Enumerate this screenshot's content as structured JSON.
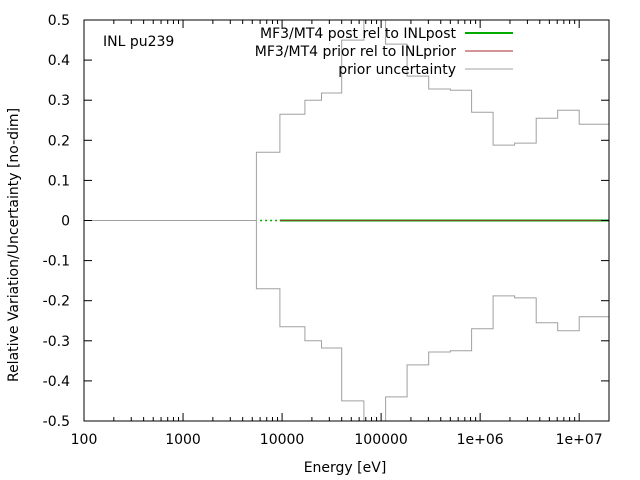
{
  "chart_data": {
    "type": "line",
    "annotation": "INL pu239",
    "xlabel": "Energy [eV]",
    "ylabel": "Relative Variation/Uncertainty [no-dim]",
    "xscale": "log",
    "xlim": [
      100,
      20000000
    ],
    "ylim": [
      -0.5,
      0.5
    ],
    "grid": false,
    "legend_position": "top-right",
    "x_ticks": [
      {
        "value": 100,
        "label": "100"
      },
      {
        "value": 1000,
        "label": "1000"
      },
      {
        "value": 10000,
        "label": "10000"
      },
      {
        "value": 100000,
        "label": "100000"
      },
      {
        "value": 1000000,
        "label": "1e+06"
      },
      {
        "value": 10000000,
        "label": "1e+07"
      }
    ],
    "y_ticks": [
      {
        "value": 0.5,
        "label": "0.5"
      },
      {
        "value": 0.4,
        "label": "0.4"
      },
      {
        "value": 0.3,
        "label": "0.3"
      },
      {
        "value": 0.2,
        "label": "0.2"
      },
      {
        "value": 0.1,
        "label": "0.1"
      },
      {
        "value": 0,
        "label": "0"
      },
      {
        "value": -0.1,
        "label": "-0.1"
      },
      {
        "value": -0.2,
        "label": "-0.2"
      },
      {
        "value": -0.3,
        "label": "-0.3"
      },
      {
        "value": -0.4,
        "label": "-0.4"
      },
      {
        "value": -0.5,
        "label": "-0.5"
      }
    ],
    "series": [
      {
        "name": "MF3/MT4 post rel to INLpost",
        "color": "#00aa00",
        "style": "solid-thick",
        "x": [
          6000,
          20000000
        ],
        "y": [
          0,
          0
        ]
      },
      {
        "name": "MF3/MT4 prior rel to INLprior",
        "color": "#a52a2a",
        "style": "solid",
        "x": [
          6000,
          20000000
        ],
        "y": [
          0,
          0
        ]
      },
      {
        "name": "prior uncertainty",
        "color": "#a0a0a0",
        "style": "step",
        "edges": [
          100,
          5500,
          9500,
          17000,
          25000,
          40000,
          67000,
          111000,
          183000,
          302000,
          500000,
          820000,
          1350000,
          2230000,
          3680000,
          6070000,
          10000000,
          20000000
        ],
        "upper": [
          0,
          0.17,
          0.265,
          0.3,
          0.318,
          0.45,
          0.5,
          0.44,
          0.36,
          0.328,
          0.325,
          0.27,
          0.188,
          0.193,
          0.255,
          0.275,
          0.24
        ],
        "lower": [
          0,
          -0.17,
          -0.265,
          -0.3,
          -0.318,
          -0.45,
          -0.5,
          -0.44,
          -0.36,
          -0.328,
          -0.325,
          -0.27,
          -0.188,
          -0.193,
          -0.255,
          -0.275,
          -0.24
        ]
      }
    ]
  }
}
